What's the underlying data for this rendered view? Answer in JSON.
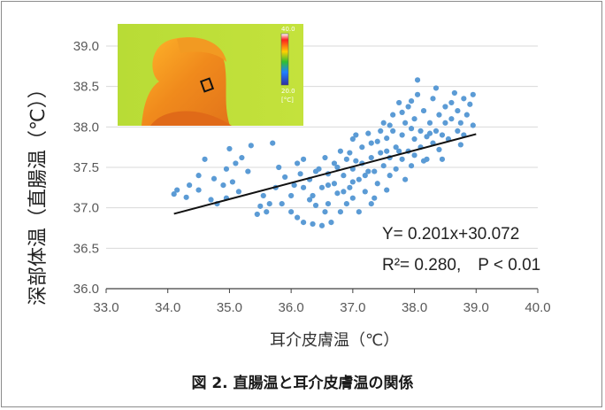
{
  "chart_data": {
    "type": "scatter",
    "title": "",
    "xlabel": "耳介皮膚温（℃）",
    "ylabel": "深部体温（直腸温（℃））",
    "xlim": [
      33.0,
      40.0
    ],
    "ylim": [
      36.0,
      39.0
    ],
    "x_ticks": [
      "33.0",
      "34.0",
      "35.0",
      "36.0",
      "37.0",
      "38.0",
      "39.0",
      "40.0"
    ],
    "y_ticks": [
      "36.0",
      "36.5",
      "37.0",
      "37.5",
      "38.0",
      "38.5",
      "39.0"
    ],
    "grid": "horizontal",
    "marker_color": "#5b9bd5",
    "line_color": "#111111",
    "regression": {
      "slope": 0.201,
      "intercept": 30.072,
      "x_range": [
        34.1,
        39.0
      ]
    },
    "annotations": [
      "Y= 0.201x+30.072",
      "R²= 0.280,　P < 0.01"
    ],
    "points": [
      [
        34.1,
        37.17
      ],
      [
        34.15,
        37.22
      ],
      [
        34.3,
        37.13
      ],
      [
        34.35,
        37.28
      ],
      [
        34.5,
        37.4
      ],
      [
        34.5,
        37.22
      ],
      [
        34.6,
        37.6
      ],
      [
        34.7,
        37.1
      ],
      [
        34.75,
        37.36
      ],
      [
        34.8,
        37.05
      ],
      [
        34.9,
        37.28
      ],
      [
        34.95,
        37.12
      ],
      [
        34.95,
        37.48
      ],
      [
        35.0,
        37.73
      ],
      [
        35.05,
        37.32
      ],
      [
        35.1,
        37.55
      ],
      [
        35.15,
        37.2
      ],
      [
        35.2,
        37.62
      ],
      [
        35.3,
        37.45
      ],
      [
        35.35,
        37.77
      ],
      [
        35.45,
        36.92
      ],
      [
        35.5,
        37.02
      ],
      [
        35.6,
        36.95
      ],
      [
        35.65,
        37.05
      ],
      [
        35.7,
        37.8
      ],
      [
        35.75,
        37.25
      ],
      [
        35.85,
        37.05
      ],
      [
        35.9,
        37.38
      ],
      [
        36.0,
        37.15
      ],
      [
        36.05,
        37.28
      ],
      [
        36.1,
        37.55
      ],
      [
        36.1,
        36.88
      ],
      [
        36.2,
        36.82
      ],
      [
        36.2,
        37.6
      ],
      [
        36.3,
        37.1
      ],
      [
        36.3,
        37.35
      ],
      [
        36.35,
        36.8
      ],
      [
        36.4,
        37.45
      ],
      [
        36.4,
        37.03
      ],
      [
        36.5,
        36.78
      ],
      [
        36.5,
        37.25
      ],
      [
        36.55,
        37.62
      ],
      [
        36.6,
        37.42
      ],
      [
        36.6,
        37.05
      ],
      [
        36.65,
        36.82
      ],
      [
        36.7,
        37.3
      ],
      [
        36.7,
        37.55
      ],
      [
        36.75,
        37.18
      ],
      [
        36.8,
        36.95
      ],
      [
        36.8,
        37.7
      ],
      [
        36.85,
        37.4
      ],
      [
        36.9,
        37.6
      ],
      [
        36.9,
        37.05
      ],
      [
        36.95,
        37.25
      ],
      [
        37.0,
        37.85
      ],
      [
        37.0,
        37.48
      ],
      [
        37.0,
        37.12
      ],
      [
        37.05,
        37.58
      ],
      [
        37.1,
        37.35
      ],
      [
        37.1,
        36.95
      ],
      [
        37.15,
        37.75
      ],
      [
        37.2,
        37.4
      ],
      [
        37.2,
        37.2
      ],
      [
        37.25,
        37.92
      ],
      [
        37.3,
        37.62
      ],
      [
        37.3,
        37.05
      ],
      [
        37.35,
        37.45
      ],
      [
        37.4,
        37.82
      ],
      [
        37.4,
        37.3
      ],
      [
        37.45,
        37.68
      ],
      [
        37.5,
        38.05
      ],
      [
        37.5,
        37.52
      ],
      [
        37.55,
        37.22
      ],
      [
        37.55,
        37.86
      ],
      [
        37.6,
        37.62
      ],
      [
        37.6,
        37.4
      ],
      [
        37.65,
        38.15
      ],
      [
        37.7,
        37.75
      ],
      [
        37.7,
        37.48
      ],
      [
        37.75,
        38.3
      ],
      [
        37.8,
        37.9
      ],
      [
        37.8,
        37.6
      ],
      [
        37.85,
        37.35
      ],
      [
        37.85,
        38.05
      ],
      [
        37.9,
        37.7
      ],
      [
        37.9,
        38.25
      ],
      [
        37.95,
        37.52
      ],
      [
        38.0,
        37.85
      ],
      [
        38.0,
        38.1
      ],
      [
        38.0,
        37.65
      ],
      [
        38.05,
        38.4
      ],
      [
        38.1,
        37.95
      ],
      [
        38.1,
        37.75
      ],
      [
        38.15,
        38.2
      ],
      [
        38.2,
        37.6
      ],
      [
        38.2,
        37.88
      ],
      [
        38.25,
        38.05
      ],
      [
        38.3,
        37.8
      ],
      [
        38.3,
        38.35
      ],
      [
        38.35,
        37.95
      ],
      [
        38.4,
        37.72
      ],
      [
        38.4,
        38.15
      ],
      [
        38.45,
        37.9
      ],
      [
        38.5,
        38.25
      ],
      [
        38.5,
        38.05
      ],
      [
        38.55,
        37.85
      ],
      [
        38.6,
        38.3
      ],
      [
        38.6,
        38.1
      ],
      [
        38.65,
        38.42
      ],
      [
        38.7,
        37.95
      ],
      [
        38.7,
        38.2
      ],
      [
        38.75,
        38.05
      ],
      [
        38.8,
        38.35
      ],
      [
        38.8,
        37.9
      ],
      [
        38.85,
        38.15
      ],
      [
        38.9,
        38.28
      ],
      [
        38.95,
        38.02
      ],
      [
        38.95,
        38.4
      ],
      [
        38.05,
        38.58
      ],
      [
        38.35,
        38.48
      ],
      [
        36.2,
        37.25
      ],
      [
        36.45,
        37.48
      ],
      [
        36.75,
        37.5
      ],
      [
        37.0,
        37.32
      ],
      [
        37.15,
        37.55
      ],
      [
        37.3,
        37.8
      ],
      [
        37.45,
        37.95
      ],
      [
        37.6,
        38.02
      ],
      [
        37.75,
        37.7
      ],
      [
        37.95,
        37.98
      ],
      [
        36.0,
        36.95
      ],
      [
        36.35,
        37.15
      ],
      [
        36.6,
        37.28
      ],
      [
        36.95,
        37.68
      ],
      [
        37.25,
        37.45
      ],
      [
        37.55,
        37.7
      ],
      [
        37.8,
        38.18
      ],
      [
        38.15,
        37.58
      ],
      [
        38.45,
        37.6
      ],
      [
        38.75,
        37.78
      ],
      [
        35.55,
        37.15
      ],
      [
        35.8,
        37.5
      ],
      [
        36.15,
        37.42
      ],
      [
        36.55,
        36.95
      ],
      [
        36.85,
        37.2
      ],
      [
        37.05,
        37.9
      ],
      [
        37.35,
        37.12
      ],
      [
        37.65,
        37.95
      ],
      [
        37.95,
        38.32
      ],
      [
        38.25,
        37.92
      ]
    ]
  },
  "caption": "図 2. 直腸温と耳介皮膚温の関係",
  "thermal_inset": {
    "scale_top_label": "40.0",
    "scale_bottom_label": "20.0",
    "scale_unit": "[°C]"
  }
}
